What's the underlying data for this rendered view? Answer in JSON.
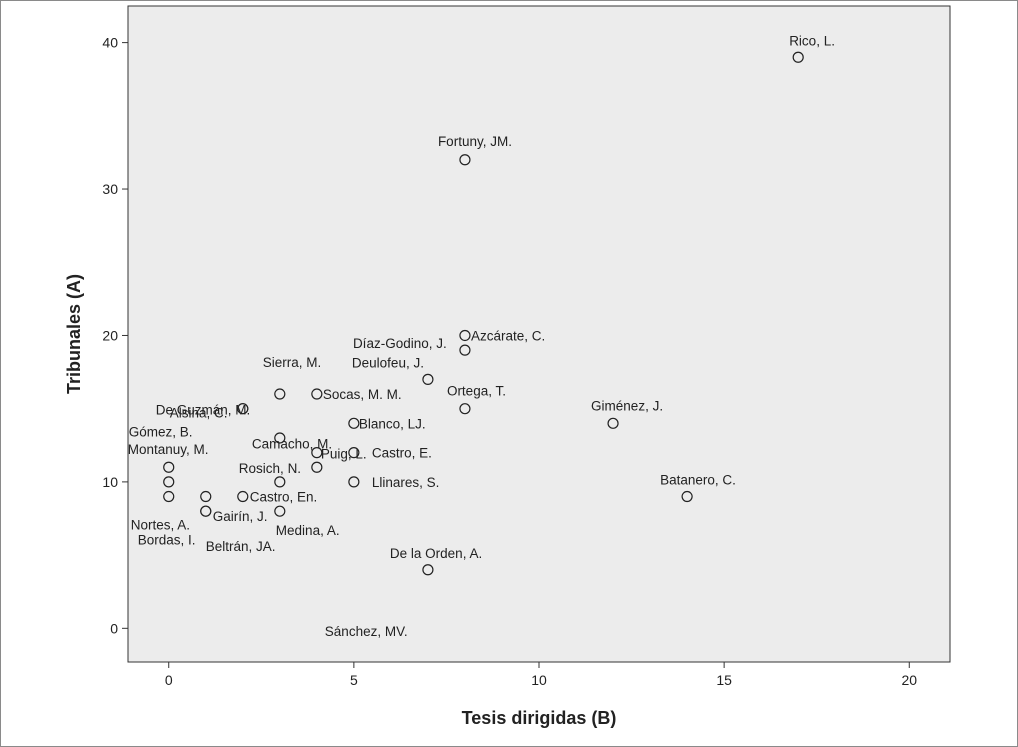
{
  "chart_data": {
    "type": "scatter",
    "title": "",
    "xlabel": "Tesis dirigidas (B)",
    "ylabel": "Tribunales (A)",
    "xlim": [
      -1.1,
      21.1
    ],
    "ylim": [
      -2.3,
      42.5
    ],
    "x_ticks": [
      0,
      5,
      10,
      15,
      20
    ],
    "y_ticks": [
      0,
      10,
      20,
      30,
      40
    ],
    "grid": false,
    "colors": {
      "plot_background": "#ececec",
      "marker_stroke": "#222222",
      "marker_fill": "#ececec"
    },
    "points": [
      {
        "label": "Rico, L.",
        "x": 17,
        "y": 39
      },
      {
        "label": "Fortuny, JM.",
        "x": 8,
        "y": 32
      },
      {
        "label": "Azcárate, C.",
        "x": 8,
        "y": 20
      },
      {
        "label": "Díaz-Godino, J.",
        "x": 8,
        "y": 19
      },
      {
        "label": "Deulofeu, J.",
        "x": 7,
        "y": 17
      },
      {
        "label": "Sierra, M.",
        "x": 3,
        "y": 16
      },
      {
        "label": "De Guzmán, M.",
        "x": 2,
        "y": 15
      },
      {
        "label": "Socas, M. M.",
        "x": 4,
        "y": 16
      },
      {
        "label": "Ortega, T.",
        "x": 8,
        "y": 15
      },
      {
        "label": "Alsina, C.",
        "x": 2,
        "y": 15
      },
      {
        "label": "Giménez, J.",
        "x": 12,
        "y": 14
      },
      {
        "label": "Camacho, M.",
        "x": 4,
        "y": 12
      },
      {
        "label": "Blanco, LJ.",
        "x": 5,
        "y": 14
      },
      {
        "label": "Gómez, B.",
        "x": 0,
        "y": 11
      },
      {
        "label": "Castro, E.",
        "x": 5,
        "y": 12
      },
      {
        "label": "Montanuy, M.",
        "x": 0,
        "y": 10
      },
      {
        "label": "Rosich, N.",
        "x": 3,
        "y": 10
      },
      {
        "label": "Puig, L.",
        "x": 4,
        "y": 11
      },
      {
        "label": "Llinares, S.",
        "x": 5,
        "y": 10
      },
      {
        "label": "Batanero, C.",
        "x": 14,
        "y": 9
      },
      {
        "label": "Castro, En.",
        "x": 2,
        "y": 9
      },
      {
        "label": "Sánchez, MV.",
        "x": 3,
        "y": 13
      },
      {
        "label": "Nortes, A.",
        "x": 0,
        "y": 9
      },
      {
        "label": "Gairín, J.",
        "x": 1,
        "y": 8
      },
      {
        "label": "Medina, A.",
        "x": 3,
        "y": 8
      },
      {
        "label": "Bordas, I.",
        "x": 1,
        "y": 9
      },
      {
        "label": "Beltrán, JA.",
        "x": 1,
        "y": 8
      },
      {
        "label": "De la Orden, A.",
        "x": 7,
        "y": 4
      }
    ]
  }
}
